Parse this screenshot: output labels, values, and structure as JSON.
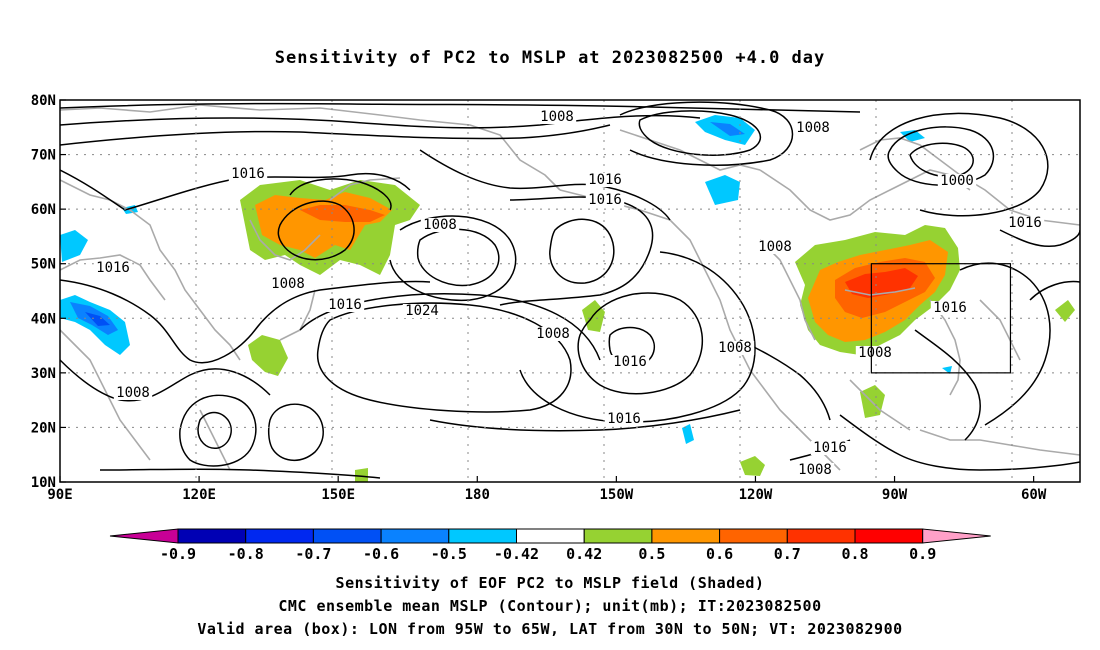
{
  "title": "Sensitivity of PC2 to MSLP at 2023082500 +4.0 day",
  "lat_labels": [
    "80N",
    "70N",
    "60N",
    "50N",
    "40N",
    "30N",
    "20N",
    "10N"
  ],
  "lon_labels": [
    "90E",
    "120E",
    "150E",
    "180",
    "150W",
    "120W",
    "90W",
    "60W"
  ],
  "contour_labels": [
    "1008",
    "1008",
    "1000",
    "1008",
    "1016",
    "1016",
    "1016",
    "1008",
    "1016",
    "1008",
    "1016",
    "1016",
    "1024",
    "1008",
    "1016",
    "1008",
    "1016",
    "1008",
    "1008",
    "1016",
    "1008",
    "1016"
  ],
  "colorbar": {
    "labels": [
      "-0.9",
      "-0.8",
      "-0.7",
      "-0.6",
      "-0.5",
      "-0.42",
      "0.42",
      "0.5",
      "0.6",
      "0.7",
      "0.8",
      "0.9"
    ],
    "colors": [
      "#0000b4",
      "#0028f0",
      "#0050f5",
      "#0a82ff",
      "#00c8ff",
      "#ffffff",
      "#96d232",
      "#ff9600",
      "#ff6400",
      "#ff3200",
      "#ff0000"
    ],
    "low_end_color": "#c80096",
    "high_end_color": "#ffa0c8"
  },
  "valid_box": {
    "lon_min": -95,
    "lon_max": -65,
    "lat_min": 30,
    "lat_max": 50
  },
  "caption": [
    "Sensitivity of EOF PC2 to MSLP field (Shaded)",
    "CMC ensemble mean MSLP (Contour); unit(mb); IT:2023082500",
    "Valid area (box): LON from 95W to 65W, LAT from 30N to 50N; VT: 2023082900"
  ]
}
